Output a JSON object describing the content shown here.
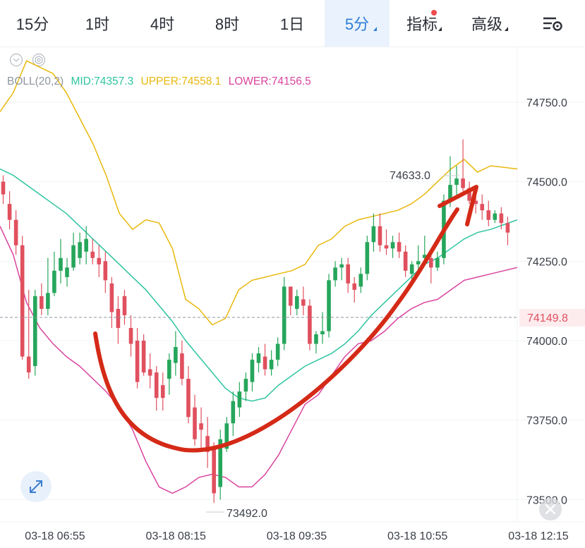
{
  "tabs": [
    {
      "label": "15分",
      "active": false
    },
    {
      "label": "1时",
      "active": false
    },
    {
      "label": "4时",
      "active": false
    },
    {
      "label": "8时",
      "active": false
    },
    {
      "label": "1日",
      "active": false
    },
    {
      "label": "5分",
      "active": true
    },
    {
      "label": "指标",
      "active": false
    },
    {
      "label": "高级",
      "active": false
    }
  ],
  "colors": {
    "up": "#26a65b",
    "down": "#e0505e",
    "mid": "#2ec4a0",
    "upper": "#e8b80c",
    "lower": "#d9449f",
    "arrow": "#d42a17",
    "accent": "#2e7dd6"
  },
  "legend": {
    "name": "BOLL(20,2)",
    "mid": "MID:74357.3",
    "upper": "UPPER:74558.1",
    "lower": "LOWER:74156.5"
  },
  "price_tag": "74149.8",
  "annotations": {
    "high": "74633.0",
    "low": "73492.0"
  },
  "chart_data": {
    "type": "candlestick",
    "indicator": "BOLL(20,2)",
    "y_ticks": [
      "74750.0",
      "74500.0",
      "74250.0",
      "74000.0",
      "73750.0",
      "73500.0"
    ],
    "x_ticks": [
      "03-18 06:55",
      "03-18 08:15",
      "03-18 09:35",
      "03-18 10:55",
      "03-18 12:15"
    ],
    "ylim": [
      73430,
      74925
    ],
    "last_price": 74149.8,
    "high": 74633.0,
    "low": 73492.0,
    "candles": [
      [
        74500,
        74520,
        74430,
        74460
      ],
      [
        74430,
        74470,
        74350,
        74380
      ],
      [
        74380,
        74410,
        74270,
        74300
      ],
      [
        74300,
        74330,
        73940,
        73950
      ],
      [
        73950,
        74160,
        73880,
        73900
      ],
      [
        73920,
        74160,
        73890,
        74140
      ],
      [
        74140,
        74180,
        74080,
        74100
      ],
      [
        74100,
        74260,
        74080,
        74150
      ],
      [
        74150,
        74280,
        74140,
        74220
      ],
      [
        74220,
        74320,
        74180,
        74260
      ],
      [
        74200,
        74260,
        74170,
        74230
      ],
      [
        74230,
        74340,
        74220,
        74300
      ],
      [
        74260,
        74340,
        74240,
        74310
      ],
      [
        74280,
        74360,
        74240,
        74320
      ],
      [
        74280,
        74320,
        74240,
        74260
      ],
      [
        74260,
        74300,
        74200,
        74240
      ],
      [
        74250,
        74280,
        74150,
        74190
      ],
      [
        74180,
        74200,
        74040,
        74090
      ],
      [
        74100,
        74140,
        73990,
        74040
      ],
      [
        74140,
        74160,
        74050,
        74080
      ],
      [
        74040,
        74080,
        73950,
        73990
      ],
      [
        74000,
        74040,
        73850,
        73870
      ],
      [
        74000,
        74020,
        73890,
        73900
      ],
      [
        73910,
        73960,
        73850,
        73890
      ],
      [
        73900,
        73920,
        73780,
        73820
      ],
      [
        73860,
        73900,
        73780,
        73820
      ],
      [
        73880,
        73960,
        73830,
        73940
      ],
      [
        73930,
        74030,
        73890,
        73980
      ],
      [
        73960,
        74000,
        73860,
        73880
      ],
      [
        73880,
        73920,
        73740,
        73760
      ],
      [
        73790,
        73830,
        73670,
        73690
      ],
      [
        73740,
        73790,
        73650,
        73720
      ],
      [
        73700,
        73760,
        73600,
        73650
      ],
      [
        73660,
        73680,
        73490,
        73520
      ],
      [
        73540,
        73720,
        73500,
        73690
      ],
      [
        73660,
        73760,
        73650,
        73740
      ],
      [
        73740,
        73840,
        73700,
        73810
      ],
      [
        73790,
        73870,
        73760,
        73840
      ],
      [
        73840,
        73900,
        73810,
        73880
      ],
      [
        73870,
        73960,
        73840,
        73940
      ],
      [
        73930,
        73980,
        73900,
        73960
      ],
      [
        73950,
        73990,
        73890,
        73910
      ],
      [
        73910,
        73970,
        73890,
        73940
      ],
      [
        73940,
        74010,
        73920,
        73990
      ],
      [
        73990,
        74200,
        73970,
        74170
      ],
      [
        74170,
        74170,
        74080,
        74110
      ],
      [
        74100,
        74160,
        74080,
        74140
      ],
      [
        74130,
        74170,
        74080,
        74110
      ],
      [
        74110,
        74130,
        73970,
        73990
      ],
      [
        73990,
        74030,
        73960,
        74020
      ],
      [
        74020,
        74090,
        73990,
        74030
      ],
      [
        74030,
        74210,
        74010,
        74190
      ],
      [
        74190,
        74250,
        74170,
        74230
      ],
      [
        74230,
        74260,
        74190,
        74240
      ],
      [
        74240,
        74260,
        74150,
        74180
      ],
      [
        74180,
        74200,
        74120,
        74160
      ],
      [
        74170,
        74230,
        74150,
        74210
      ],
      [
        74210,
        74330,
        74190,
        74310
      ],
      [
        74310,
        74400,
        74280,
        74360
      ],
      [
        74360,
        74400,
        74280,
        74300
      ],
      [
        74300,
        74350,
        74270,
        74290
      ],
      [
        74290,
        74330,
        74260,
        74310
      ],
      [
        74310,
        74340,
        74260,
        74280
      ],
      [
        74280,
        74300,
        74200,
        74220
      ],
      [
        74210,
        74250,
        74190,
        74240
      ],
      [
        74240,
        74300,
        74220,
        74250
      ],
      [
        74260,
        74330,
        74240,
        74270
      ],
      [
        74260,
        74290,
        74180,
        74230
      ],
      [
        74230,
        74280,
        74220,
        74260
      ],
      [
        74260,
        74460,
        74240,
        74440
      ],
      [
        74440,
        74580,
        74420,
        74490
      ],
      [
        74490,
        74550,
        74450,
        74510
      ],
      [
        74510,
        74633,
        74470,
        74480
      ],
      [
        74480,
        74500,
        74430,
        74440
      ],
      [
        74440,
        74460,
        74400,
        74430
      ],
      [
        74430,
        74460,
        74380,
        74410
      ],
      [
        74410,
        74440,
        74360,
        74380
      ],
      [
        74380,
        74410,
        74370,
        74400
      ],
      [
        74400,
        74420,
        74350,
        74370
      ],
      [
        74370,
        74390,
        74300,
        74340
      ]
    ],
    "bands": {
      "mid": [
        74540,
        74520,
        74490,
        74460,
        74430,
        74400,
        74360,
        74320,
        74280,
        74240,
        74200,
        74160,
        74110,
        74060,
        74000,
        73950,
        73900,
        73850,
        73820,
        73810,
        73820,
        73860,
        73890,
        73920,
        73940,
        73960,
        73990,
        74030,
        74080,
        74120,
        74160,
        74200,
        74240,
        74260,
        74290,
        74320,
        74340,
        74350,
        74365,
        74380
      ],
      "upper": [
        74720,
        74780,
        74880,
        74860,
        74840,
        74780,
        74700,
        74620,
        74520,
        74400,
        74350,
        74380,
        74370,
        74290,
        74130,
        74100,
        74050,
        74070,
        74160,
        74190,
        74200,
        74210,
        74220,
        74240,
        74300,
        74320,
        74360,
        74380,
        74390,
        74400,
        74410,
        74430,
        74460,
        74500,
        74540,
        74570,
        74530,
        74550,
        74545,
        74540
      ],
      "lower": [
        74360,
        74270,
        74120,
        74040,
        73990,
        73950,
        73920,
        73880,
        73840,
        73790,
        73720,
        73620,
        73540,
        73520,
        73540,
        73570,
        73580,
        73570,
        73540,
        73540,
        73580,
        73640,
        73720,
        73800,
        73830,
        73890,
        73950,
        73990,
        74000,
        74030,
        74070,
        74100,
        74120,
        74130,
        74160,
        74190,
        74200,
        74210,
        74220,
        74230
      ]
    },
    "overlay": "red curved arrow from bearish dip to bullish rise"
  }
}
